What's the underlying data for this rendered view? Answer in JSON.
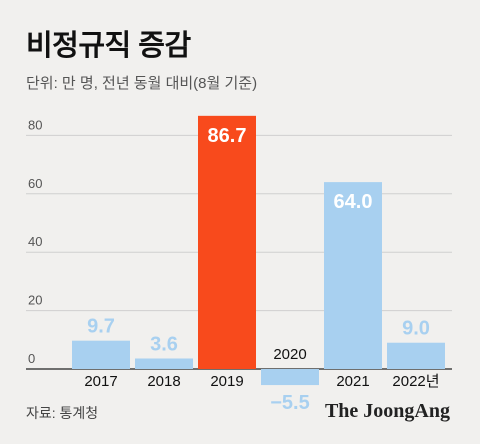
{
  "header": {
    "title": "비정규직 증감",
    "unit": "단위: 만 명, 전년 동월 대비(8월 기준)"
  },
  "footer": {
    "source": "자료: 통계청",
    "brand": "The JoongAng"
  },
  "colors": {
    "background": "#f1f0ee",
    "bar": "#a8d0f0",
    "highlight": "#f84a1c",
    "grid": "#cfcfcf",
    "axis": "#222222",
    "label_light": "#a8d0f0",
    "label_on_bar": "#ffffff",
    "year_text": "#111111",
    "tick_text": "#555555"
  },
  "chart_data": {
    "type": "bar",
    "categories": [
      "2017",
      "2018",
      "2019",
      "2020",
      "2021",
      "2022년"
    ],
    "values": [
      9.7,
      3.6,
      86.7,
      -5.5,
      64.0,
      9.0
    ],
    "value_labels": [
      "9.7",
      "3.6",
      "86.7",
      "−5.5",
      "64.0",
      "9.0"
    ],
    "highlight_index": 2,
    "yticks": [
      0,
      20,
      40,
      60,
      80
    ],
    "ylim": [
      -8,
      90
    ],
    "grid": true,
    "title": "비정규직 증감",
    "xlabel": "",
    "ylabel": ""
  }
}
